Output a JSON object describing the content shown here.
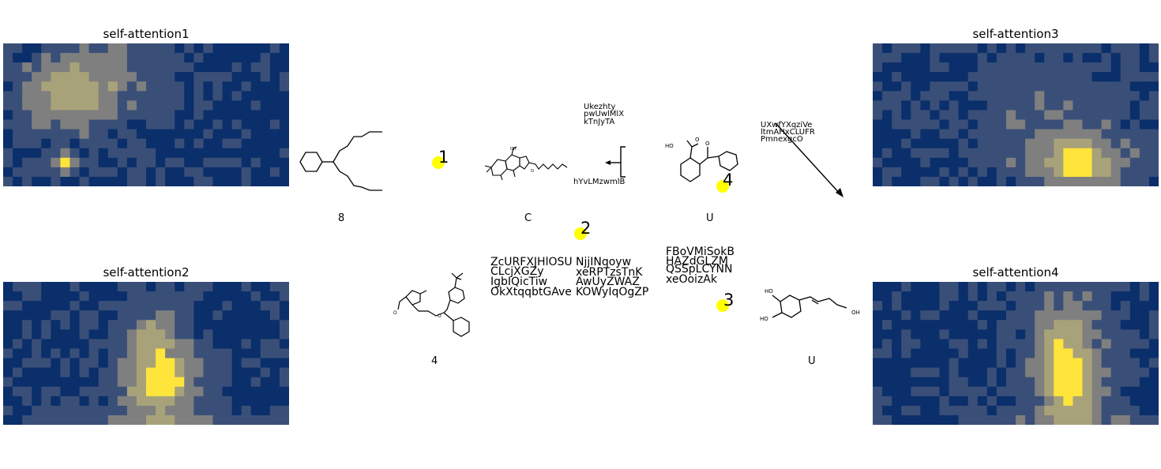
{
  "panels": [
    {
      "title": "self-attention1",
      "colors": [
        "#0a2f6b",
        "#3a4f78",
        "#7f7f7f",
        "#a8a27a",
        "#ffe53b"
      ]
    },
    {
      "title": "self-attention2",
      "colors": [
        "#0a2f6b",
        "#3a4f78",
        "#7f7f7f",
        "#a8a27a",
        "#ffe53b"
      ]
    },
    {
      "title": "self-attention3",
      "colors": [
        "#0a2f6b",
        "#3a4f78",
        "#7f7f7f",
        "#a8a27a",
        "#ffe53b"
      ]
    },
    {
      "title": "self-attention4",
      "colors": [
        "#0a2f6b",
        "#3a4f78",
        "#7f7f7f",
        "#a8a27a",
        "#ffe53b"
      ]
    }
  ],
  "molecule_labels": {
    "mol1": "8",
    "mol2": "C",
    "mol3": "U",
    "mol4": "4",
    "mol5": "U"
  },
  "markers": {
    "m1": "1",
    "m2": "2",
    "m3": "3",
    "m4": "4",
    "dot_color": "#ffff00"
  },
  "text_blocks": {
    "top_mid": [
      "Ukezhty",
      "pwUwlMlX",
      "kTnJyTA"
    ],
    "top_mid_lower": "hYvLMzwmlB",
    "top_right": [
      "UXwfYXqziVe",
      "ltmAHxCLUFR",
      "PmnexgcO"
    ],
    "bottom_left": [
      "ZcURFXJHlOSU",
      "CLcjXGZy",
      "IgbIQicTiw",
      "OkXtqqbtGAve"
    ],
    "bottom_mid": [
      "NjjINqoyw",
      "xeRPTzsTnK",
      "AwUyZWAZ",
      "KOWyIqOgZP"
    ],
    "bottom_right": [
      "FBoVMiSokB",
      "HAZdGLZM",
      "QSSpLCYNN",
      "xeOoizAk"
    ]
  },
  "atom_labels": {
    "ho": "HO",
    "oh": "OH",
    "o": "O"
  }
}
